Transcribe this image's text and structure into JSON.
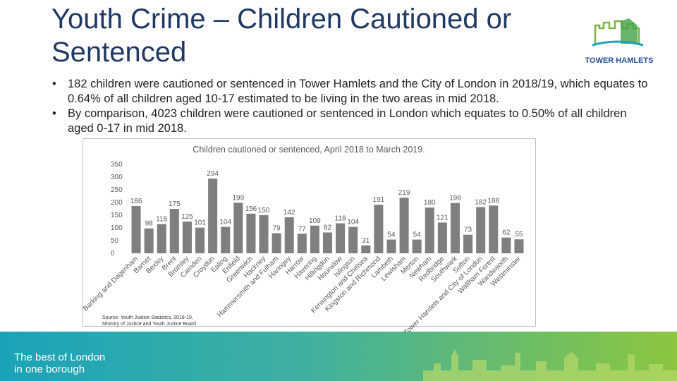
{
  "header": {
    "title": "Youth Crime – Children Cautioned or Sentenced",
    "logo_text": "TOWER HAMLETS"
  },
  "bullets": [
    "182 children were cautioned or sentenced in Tower Hamlets and the City of London in 2018/19, which equates to 0.64% of all children aged 10-17 estimated to be living in the two areas in mid 2018.",
    "By comparison, 4023 children were cautioned or sentenced in London which equates to 0.50% of all children aged 0-17 in mid 2018."
  ],
  "chart_data": {
    "type": "bar",
    "title": "Children cautioned or sentenced, April 2018 to March 2019.",
    "categories": [
      "Barking and Dagenham",
      "Barnet",
      "Bexley",
      "Brent",
      "Bromley",
      "Camden",
      "Croydon",
      "Ealing",
      "Enfield",
      "Greenwich",
      "Hackney",
      "Hammersmith and Fulham",
      "Haringey",
      "Harrow",
      "Havering",
      "Hillingdon",
      "Hounslow",
      "Islington",
      "Kensington and Chelsea",
      "Kingston and Richmond",
      "Lambeth",
      "Lewisham",
      "Merton",
      "Newham",
      "Redbridge",
      "Southwark",
      "Sutton",
      "Tower Hamlets and City of London",
      "Waltham Forest",
      "Wandsworth",
      "Westminster"
    ],
    "values": [
      186,
      98,
      115,
      175,
      125,
      101,
      294,
      104,
      199,
      156,
      150,
      79,
      142,
      77,
      109,
      82,
      118,
      104,
      31,
      191,
      54,
      219,
      54,
      180,
      121,
      198,
      73,
      182,
      188,
      62,
      55
    ],
    "color": "#7f7f7f",
    "ylim": [
      0,
      350
    ],
    "yticks": [
      0,
      50,
      100,
      150,
      200,
      250,
      300,
      350
    ],
    "grid": false,
    "source": [
      "Source: Youth Justice Statistics, 2018-19,",
      "Ministry of Justice and Youth Justice Board"
    ]
  },
  "footer": {
    "tagline": [
      "The best of London",
      "in one borough"
    ]
  }
}
